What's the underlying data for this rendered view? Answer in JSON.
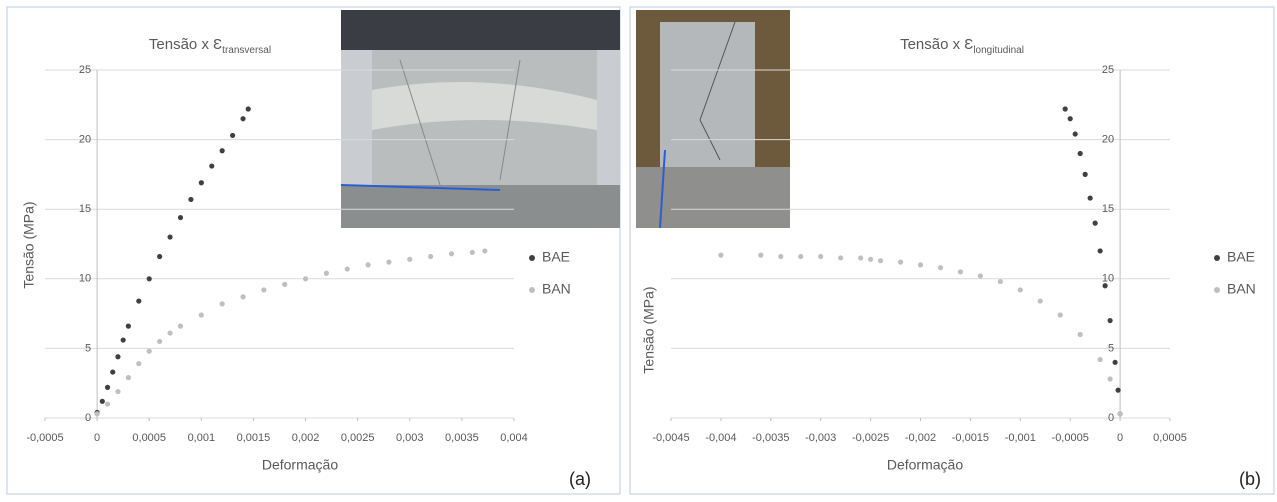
{
  "chart_data": [
    {
      "type": "scatter",
      "title": "Tensão x Ɛ",
      "title_subscript": "transversal",
      "x_label": "Deformação",
      "y_label": "Tensão (MPa)",
      "panel_label": "(a)",
      "xlim": [
        -0.0005,
        0.004
      ],
      "xticks": [
        {
          "value": -0.0005,
          "label": "-0,0005"
        },
        0,
        {
          "value": 0.0005,
          "label": "0,0005"
        },
        {
          "value": 0.001,
          "label": "0,001"
        },
        {
          "value": 0.0015,
          "label": "0,0015"
        },
        {
          "value": 0.002,
          "label": "0,002"
        },
        {
          "value": 0.0025,
          "label": "0,0025"
        },
        {
          "value": 0.003,
          "label": "0,003"
        },
        {
          "value": 0.0035,
          "label": "0,0035"
        },
        {
          "value": 0.004,
          "label": "0,004"
        }
      ],
      "ylim": [
        0,
        25
      ],
      "yticks": [
        0,
        5,
        10,
        15,
        20,
        25
      ],
      "grid": true,
      "legend": "right",
      "series": [
        {
          "name": "BAE",
          "color": "#404040",
          "x": [
            0,
            5e-05,
            0.0001,
            0.00015,
            0.0002,
            0.00025,
            0.0003,
            0.0004,
            0.0005,
            0.0006,
            0.0007,
            0.0008,
            0.0009,
            0.001,
            0.0011,
            0.0012,
            0.0013,
            0.0014,
            0.00145
          ],
          "values": [
            0.4,
            1.2,
            2.2,
            3.3,
            4.4,
            5.6,
            6.6,
            8.4,
            10.0,
            11.6,
            13.0,
            14.4,
            15.7,
            16.9,
            18.1,
            19.2,
            20.3,
            21.5,
            22.2
          ]
        },
        {
          "name": "BAN",
          "color": "#bfbfbf",
          "x": [
            0,
            0.0001,
            0.0002,
            0.0003,
            0.0004,
            0.0005,
            0.0006,
            0.0007,
            0.0008,
            0.001,
            0.0012,
            0.0014,
            0.0016,
            0.0018,
            0.002,
            0.0022,
            0.0024,
            0.0026,
            0.0028,
            0.003,
            0.0032,
            0.0034,
            0.0036,
            0.00372
          ],
          "values": [
            0.3,
            1.0,
            1.9,
            2.9,
            3.9,
            4.8,
            5.5,
            6.1,
            6.6,
            7.4,
            8.2,
            8.7,
            9.2,
            9.6,
            10.0,
            10.4,
            10.7,
            11.0,
            11.2,
            11.4,
            11.6,
            11.8,
            11.9,
            12.0
          ]
        }
      ]
    },
    {
      "type": "scatter",
      "title": "Tensão x Ɛ",
      "title_subscript": "longitudinal",
      "x_label": "Deformação",
      "y_label": "Tensão (MPa)",
      "panel_label": "(b)",
      "xlim": [
        -0.0045,
        0.0005
      ],
      "xticks": [
        {
          "value": -0.0045,
          "label": "-0,0045"
        },
        {
          "value": -0.004,
          "label": "-0,004"
        },
        {
          "value": -0.0035,
          "label": "-0,0035"
        },
        {
          "value": -0.003,
          "label": "-0,003"
        },
        {
          "value": -0.0025,
          "label": "-0,0025"
        },
        {
          "value": -0.002,
          "label": "-0,002"
        },
        {
          "value": -0.0015,
          "label": "-0,0015"
        },
        {
          "value": -0.001,
          "label": "-0,001"
        },
        {
          "value": -0.0005,
          "label": "-0,0005"
        },
        0,
        {
          "value": 0.0005,
          "label": "0,0005"
        }
      ],
      "ylim": [
        0,
        25
      ],
      "yticks": [
        0,
        5,
        10,
        15,
        20,
        25
      ],
      "grid": true,
      "legend": "right",
      "series": [
        {
          "name": "BAE",
          "color": "#404040",
          "x": [
            0,
            -2e-05,
            -5e-05,
            -0.0001,
            -0.00015,
            -0.0002,
            -0.00025,
            -0.0003,
            -0.00035,
            -0.0004,
            -0.00045,
            -0.0005,
            -0.00055
          ],
          "values": [
            0.3,
            2,
            4,
            7,
            9.5,
            12,
            14,
            15.8,
            17.5,
            19,
            20.4,
            21.5,
            22.2
          ]
        },
        {
          "name": "BAN",
          "color": "#bfbfbf",
          "x": [
            -0.004,
            -0.0036,
            -0.0034,
            -0.0032,
            -0.003,
            -0.0028,
            -0.0026,
            -0.0025,
            -0.0024,
            -0.0022,
            -0.002,
            -0.0018,
            -0.0016,
            -0.0014,
            -0.0012,
            -0.001,
            -0.0008,
            -0.0006,
            -0.0004,
            -0.0002,
            -0.0001,
            0
          ],
          "values": [
            11.7,
            11.7,
            11.6,
            11.6,
            11.6,
            11.5,
            11.5,
            11.4,
            11.3,
            11.2,
            11.0,
            10.8,
            10.5,
            10.2,
            9.8,
            9.2,
            8.4,
            7.4,
            6.0,
            4.2,
            2.8,
            0.3
          ]
        }
      ]
    }
  ]
}
